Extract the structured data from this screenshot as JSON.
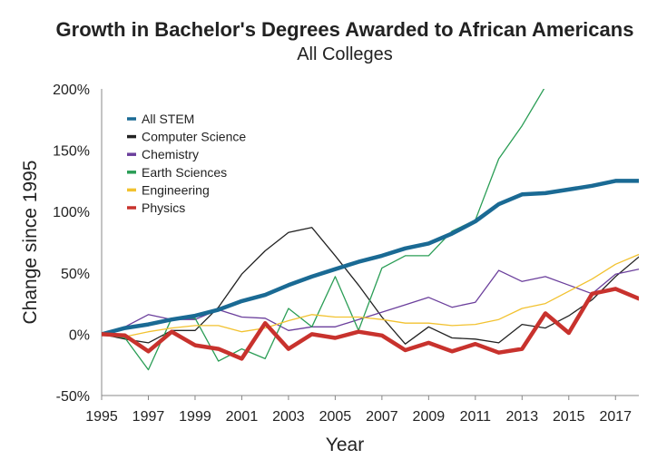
{
  "chart_data": {
    "type": "line",
    "title": "Growth in Bachelor's Degrees Awarded to African Americans",
    "subtitle": "All Colleges",
    "xlabel": "Year",
    "ylabel": "Change since 1995",
    "xlim": [
      1995,
      2018
    ],
    "ylim": [
      -50,
      200
    ],
    "x_ticks": [
      1995,
      1997,
      1999,
      2001,
      2003,
      2005,
      2007,
      2009,
      2011,
      2013,
      2015,
      2017
    ],
    "x_tick_labels": [
      "1995",
      "1997",
      "1999",
      "2001",
      "2003",
      "2005",
      "2007",
      "2009",
      "2011",
      "2013",
      "2015",
      "2017"
    ],
    "y_ticks": [
      -50,
      0,
      50,
      100,
      150,
      200
    ],
    "y_tick_labels": [
      "-50%",
      "0%",
      "50%",
      "100%",
      "150%",
      "200%"
    ],
    "grid": false,
    "legend_position": "top-left",
    "x": [
      1995,
      1996,
      1997,
      1998,
      1999,
      2000,
      2001,
      2002,
      2003,
      2004,
      2005,
      2006,
      2007,
      2008,
      2009,
      2010,
      2011,
      2012,
      2013,
      2014,
      2015,
      2016,
      2017,
      2018
    ],
    "series": [
      {
        "name": "All STEM",
        "color": "#1a6a94",
        "width": 4.5,
        "values": [
          0,
          5,
          8,
          12,
          15,
          20,
          27,
          32,
          40,
          47,
          53,
          59,
          64,
          70,
          74,
          82,
          92,
          106,
          114,
          115,
          118,
          121,
          125,
          125
        ]
      },
      {
        "name": "Computer Science",
        "color": "#222222",
        "width": 1.3,
        "values": [
          0,
          -4,
          -7,
          3,
          3,
          22,
          49,
          68,
          83,
          87,
          64,
          40,
          14,
          -8,
          6,
          -3,
          -4,
          -7,
          8,
          5,
          15,
          28,
          47,
          63
        ]
      },
      {
        "name": "Chemistry",
        "color": "#6b3f9c",
        "width": 1.3,
        "values": [
          0,
          6,
          16,
          12,
          12,
          20,
          14,
          13,
          3,
          6,
          6,
          12,
          18,
          24,
          30,
          22,
          26,
          52,
          43,
          47,
          40,
          33,
          49,
          53
        ]
      },
      {
        "name": "Earth Sciences",
        "color": "#2a9d55",
        "width": 1.3,
        "values": [
          0,
          -3,
          -29,
          13,
          13,
          -22,
          -12,
          -20,
          21,
          6,
          47,
          3,
          54,
          64,
          64,
          84,
          93,
          143,
          170,
          202,
          null,
          null,
          null,
          null
        ]
      },
      {
        "name": "Engineering",
        "color": "#f2c230",
        "width": 1.3,
        "values": [
          0,
          -2,
          2,
          5,
          7,
          7,
          2,
          5,
          11,
          16,
          14,
          14,
          12,
          9,
          9,
          7,
          8,
          12,
          21,
          25,
          35,
          45,
          57,
          65
        ]
      },
      {
        "name": "Physics",
        "color": "#c8322d",
        "width": 4.5,
        "values": [
          0,
          -1,
          -14,
          2,
          -9,
          -12,
          -20,
          9,
          -12,
          0,
          -3,
          2,
          -1,
          -13,
          -7,
          -14,
          -8,
          -15,
          -12,
          17,
          1,
          33,
          37,
          29
        ]
      }
    ]
  }
}
